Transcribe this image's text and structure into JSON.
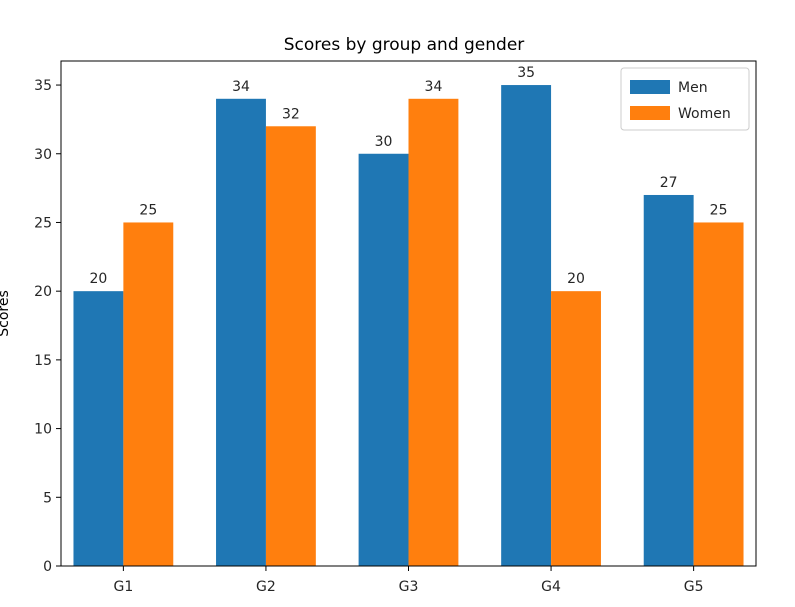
{
  "chart_data": {
    "type": "bar",
    "title": "Scores by group and gender",
    "xlabel": "",
    "ylabel": "Scores",
    "categories": [
      "G1",
      "G2",
      "G3",
      "G4",
      "G5"
    ],
    "series": [
      {
        "name": "Men",
        "values": [
          20,
          34,
          30,
          35,
          27
        ],
        "color": "#1f77b4"
      },
      {
        "name": "Women",
        "values": [
          25,
          32,
          34,
          20,
          25
        ],
        "color": "#ff7f0e"
      }
    ],
    "yticks": [
      0,
      5,
      10,
      15,
      20,
      25,
      30,
      35
    ],
    "ylim": [
      0,
      36.75
    ],
    "grid": false,
    "legend_position": "top-right"
  }
}
